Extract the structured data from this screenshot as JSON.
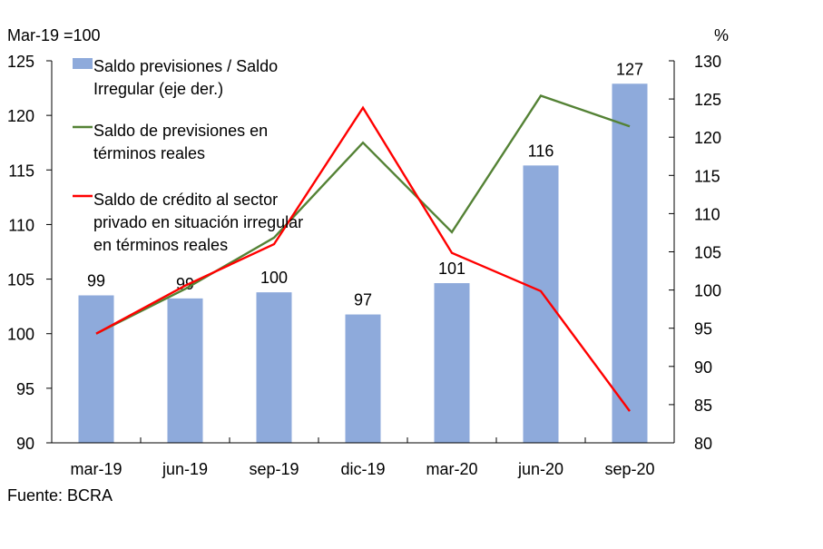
{
  "chart_data": {
    "type": "bar+line",
    "title": "",
    "left_axis_label": "Mar-19 =100",
    "right_axis_label": "%",
    "source": "Fuente: BCRA",
    "categories": [
      "mar-19",
      "jun-19",
      "sep-19",
      "dic-19",
      "mar-20",
      "jun-20",
      "sep-20"
    ],
    "left_axis": {
      "min": 90,
      "max": 125,
      "ticks": [
        90,
        95,
        100,
        105,
        110,
        115,
        120,
        125
      ]
    },
    "right_axis": {
      "min": 80,
      "max": 130,
      "ticks": [
        80,
        85,
        90,
        95,
        100,
        105,
        110,
        115,
        120,
        125,
        130
      ]
    },
    "series": [
      {
        "name": "Saldo previsiones / Saldo Irregular (eje der.)",
        "type": "bar",
        "axis": "right",
        "color": "#8eaadb",
        "values": [
          99.3,
          98.9,
          99.7,
          96.8,
          100.9,
          116.3,
          127.0
        ],
        "labels": [
          "99",
          "99",
          "100",
          "97",
          "101",
          "116",
          "127"
        ]
      },
      {
        "name": "Saldo de previsiones en términos reales",
        "type": "line",
        "axis": "left",
        "color": "#548235",
        "values": [
          100.0,
          104.1,
          108.8,
          117.5,
          109.3,
          121.8,
          119.0
        ]
      },
      {
        "name": "Saldo de crédito al sector privado en situación irregular en términos reales",
        "type": "line",
        "axis": "left",
        "color": "#ff0000",
        "values": [
          100.0,
          104.4,
          108.2,
          120.7,
          107.4,
          103.9,
          92.9
        ]
      }
    ],
    "legend": {
      "position": "top-left-inside",
      "entries": [
        [
          "Saldo previsiones / Saldo",
          "Irregular (eje der.)"
        ],
        [
          "Saldo de previsiones en",
          "términos reales"
        ],
        [
          "Saldo de crédito al sector",
          "privado en situación irregular",
          "en términos reales"
        ]
      ]
    },
    "grid": false
  }
}
